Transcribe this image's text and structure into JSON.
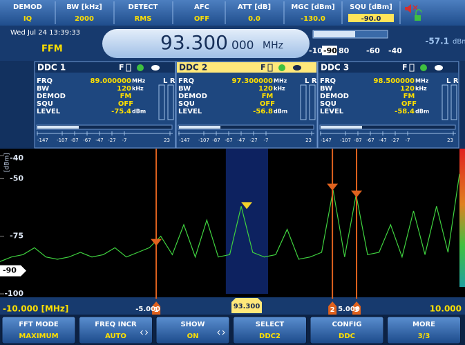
{
  "header": {
    "cells": [
      {
        "label": "DEMOD",
        "value": "IQ"
      },
      {
        "label": "BW [kHz]",
        "value": "2000"
      },
      {
        "label": "DETECT",
        "value": "RMS"
      },
      {
        "label": "AFC",
        "value": "OFF"
      },
      {
        "label": "ATT [dB]",
        "value": "0.0"
      },
      {
        "label": "MGC [dBm]",
        "value": "-130.0"
      },
      {
        "label": "SQU [dBm]",
        "value": "-90.0"
      }
    ]
  },
  "status": {
    "date": "Wed Jul 24  13:39:33",
    "mode": "FFM",
    "frequency": "93.300",
    "frequency_fine": "000",
    "frequency_unit": "MHz",
    "level": "-57.1",
    "level_unit": "dBm",
    "scale": [
      "-10",
      "-90",
      "80",
      "-60",
      "-40"
    ]
  },
  "ddc": [
    {
      "title": "DDC 1",
      "flag": "F",
      "channels": "L R",
      "rows": [
        {
          "label": "FRQ",
          "value": "89.000000",
          "unit": "MHz"
        },
        {
          "label": "BW",
          "value": "120",
          "unit": "kHz"
        },
        {
          "label": "DEMOD",
          "value": "FM"
        },
        {
          "label": "SQU",
          "value": "OFF"
        },
        {
          "label": "LEVEL",
          "value": "-75.4",
          "unit": "dBm"
        }
      ],
      "scale": [
        "-147",
        "-107",
        "-87",
        "-67",
        "-47",
        "-27",
        "-7",
        "23"
      ]
    },
    {
      "title": "DDC 2",
      "flag": "F",
      "channels": "L R",
      "selected": true,
      "rows": [
        {
          "label": "FRQ",
          "value": "97.300000",
          "unit": "MHz"
        },
        {
          "label": "BW",
          "value": "120",
          "unit": "kHz"
        },
        {
          "label": "DEMOD",
          "value": "FM"
        },
        {
          "label": "SQU",
          "value": "OFF"
        },
        {
          "label": "LEVEL",
          "value": "-56.8",
          "unit": "dBm"
        }
      ],
      "scale": [
        "-147",
        "-107",
        "-87",
        "-67",
        "-47",
        "-27",
        "-7",
        "23"
      ]
    },
    {
      "title": "DDC 3",
      "flag": "F",
      "channels": "L R",
      "rows": [
        {
          "label": "FRQ",
          "value": "98.500000",
          "unit": "MHz"
        },
        {
          "label": "BW",
          "value": "120",
          "unit": "kHz"
        },
        {
          "label": "DEMOD",
          "value": "FM"
        },
        {
          "label": "SQU",
          "value": "OFF"
        },
        {
          "label": "LEVEL",
          "value": "-58.4",
          "unit": "dBm"
        }
      ],
      "scale": [
        "-147",
        "-107",
        "-87",
        "-67",
        "-47",
        "-27",
        "-7",
        "23"
      ]
    }
  ],
  "chart_data": {
    "type": "line",
    "ylabel": "[dBm]",
    "xlim": [
      -10,
      10
    ],
    "ylim": [
      -100,
      -37
    ],
    "yticks": [
      -40,
      -50,
      -75,
      -100
    ],
    "ref_level": -90,
    "color": "#3fd23f",
    "x": [
      -10,
      -9.5,
      -9,
      -8.5,
      -8,
      -7.5,
      -7,
      -6.5,
      -6,
      -5.5,
      -5,
      -4.5,
      -4,
      -3.5,
      -3,
      -2.5,
      -2,
      -1.5,
      -1,
      -0.5,
      0,
      0.5,
      1,
      1.5,
      2,
      2.5,
      3,
      3.5,
      4,
      4.5,
      5,
      5.5,
      6,
      6.5,
      7,
      7.5,
      8,
      8.5,
      9,
      9.5,
      10
    ],
    "values": [
      -86,
      -84,
      -83,
      -80,
      -84,
      -85,
      -84,
      -82,
      -84,
      -83,
      -80,
      -84,
      -82,
      -80,
      -75,
      -83,
      -70,
      -84,
      -68,
      -84,
      -83,
      -62,
      -82,
      -84,
      -83,
      -72,
      -85,
      -84,
      -82,
      -55,
      -84,
      -57,
      -83,
      -82,
      -70,
      -84,
      -64,
      -83,
      -62,
      -82,
      -48
    ],
    "selection": [
      -0.17,
      1.67
    ],
    "markers": [
      {
        "label": "1",
        "x": -3.2,
        "level": -78,
        "color": "#e0621e"
      },
      {
        "x": 0.74,
        "level": -62,
        "color": "#f2d22a"
      },
      {
        "label": "2",
        "x": 4.47,
        "level": -54,
        "color": "#e0621e"
      },
      {
        "label": "3",
        "x": 5.52,
        "level": -57,
        "color": "#e0621e"
      }
    ],
    "axis_labels": [
      "-10.000 [MHz]",
      "-5.000",
      "93.300",
      "5.000",
      "10.000"
    ]
  },
  "softkeys": [
    {
      "label": "FFT MODE",
      "value": "MAXIMUM"
    },
    {
      "label": "FREQ INCR",
      "value": "AUTO",
      "arrows": true
    },
    {
      "label": "SHOW",
      "value": "ON",
      "arrows": true
    },
    {
      "label": "SELECT",
      "value": "DDC2"
    },
    {
      "label": "CONFIG",
      "value": "DDC"
    },
    {
      "label": "MORE",
      "value": "3/3"
    }
  ]
}
